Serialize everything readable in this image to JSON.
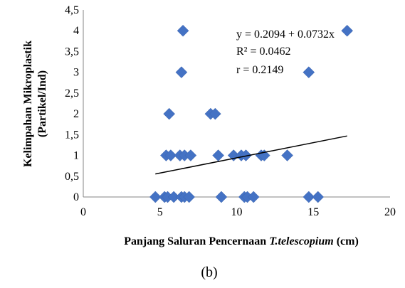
{
  "chart_data": {
    "type": "scatter",
    "x_ticks": [
      "0",
      "5",
      "10",
      "15",
      "20"
    ],
    "y_ticks": [
      "0",
      "0,5",
      "1",
      "1,5",
      "2",
      "2,5",
      "3",
      "3,5",
      "4",
      "4,5"
    ],
    "xlim": [
      0,
      20
    ],
    "ylim": [
      0,
      4.5
    ],
    "xlabel": {
      "part1": "Panjang Saluran Pencernaan ",
      "part2": "T.telescopium",
      "part3": " (cm)"
    },
    "ylabel_line1": "Kelimpahan Mikroplastik",
    "ylabel_line2": "(Partikel/Ind)",
    "marker_color": "#4472C4",
    "marker_shape": "diamond",
    "grid": false,
    "points": [
      {
        "x": 4.7,
        "y": 0
      },
      {
        "x": 5.3,
        "y": 0
      },
      {
        "x": 5.5,
        "y": 0
      },
      {
        "x": 5.9,
        "y": 0
      },
      {
        "x": 6.4,
        "y": 0
      },
      {
        "x": 6.6,
        "y": 0
      },
      {
        "x": 6.9,
        "y": 0
      },
      {
        "x": 9.0,
        "y": 0
      },
      {
        "x": 10.5,
        "y": 0
      },
      {
        "x": 10.7,
        "y": 0
      },
      {
        "x": 11.1,
        "y": 0
      },
      {
        "x": 14.7,
        "y": 0
      },
      {
        "x": 15.3,
        "y": 0
      },
      {
        "x": 5.4,
        "y": 1
      },
      {
        "x": 5.7,
        "y": 1
      },
      {
        "x": 6.3,
        "y": 1
      },
      {
        "x": 6.6,
        "y": 1
      },
      {
        "x": 7.0,
        "y": 1
      },
      {
        "x": 8.8,
        "y": 1
      },
      {
        "x": 9.8,
        "y": 1
      },
      {
        "x": 10.3,
        "y": 1
      },
      {
        "x": 10.6,
        "y": 1
      },
      {
        "x": 11.6,
        "y": 1
      },
      {
        "x": 11.8,
        "y": 1
      },
      {
        "x": 13.3,
        "y": 1
      },
      {
        "x": 5.6,
        "y": 2
      },
      {
        "x": 8.3,
        "y": 2
      },
      {
        "x": 8.6,
        "y": 2
      },
      {
        "x": 6.4,
        "y": 3
      },
      {
        "x": 14.7,
        "y": 3
      },
      {
        "x": 6.5,
        "y": 4
      },
      {
        "x": 17.2,
        "y": 4
      }
    ],
    "trendline": {
      "intercept": 0.2094,
      "slope": 0.0732,
      "x_start": 4.7,
      "x_end": 17.2
    },
    "annotations": [
      "y = 0.2094 + 0.0732x",
      "R² = 0.0462",
      "r = 0.2149"
    ],
    "caption": "(b)"
  }
}
